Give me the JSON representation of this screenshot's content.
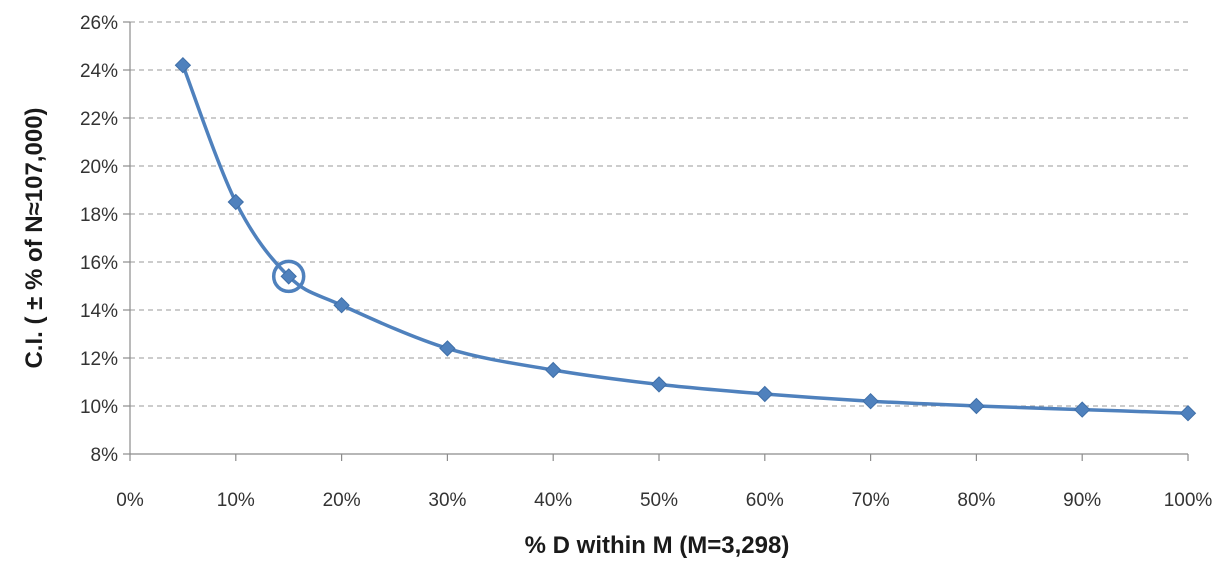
{
  "chart_data": {
    "type": "line",
    "title": "",
    "xlabel": "% D within M (M=3,298)",
    "ylabel": "C.I. ( ± % of N≈107,000)",
    "xlim": [
      0,
      100
    ],
    "ylim": [
      8,
      26
    ],
    "x_ticks": [
      0,
      10,
      20,
      30,
      40,
      50,
      60,
      70,
      80,
      90,
      100
    ],
    "y_ticks": [
      8,
      10,
      12,
      14,
      16,
      18,
      20,
      22,
      24,
      26
    ],
    "x_tick_labels": [
      "0%",
      "10%",
      "20%",
      "30%",
      "40%",
      "50%",
      "60%",
      "70%",
      "80%",
      "90%",
      "100%"
    ],
    "y_tick_labels": [
      "8%",
      "10%",
      "12%",
      "14%",
      "16%",
      "18%",
      "20%",
      "22%",
      "24%",
      "26%"
    ],
    "grid": true,
    "legend": "none",
    "series": [
      {
        "color": "#4f81bd",
        "marker": "diamond",
        "smooth": true,
        "x": [
          5,
          10,
          15,
          20,
          30,
          40,
          50,
          60,
          70,
          80,
          90,
          100
        ],
        "y": [
          24.2,
          18.5,
          15.4,
          14.2,
          12.4,
          11.5,
          10.9,
          10.5,
          10.2,
          10.0,
          9.85,
          9.7
        ]
      }
    ],
    "highlight": {
      "x": 15,
      "y": 15.4,
      "shape": "circle"
    }
  }
}
